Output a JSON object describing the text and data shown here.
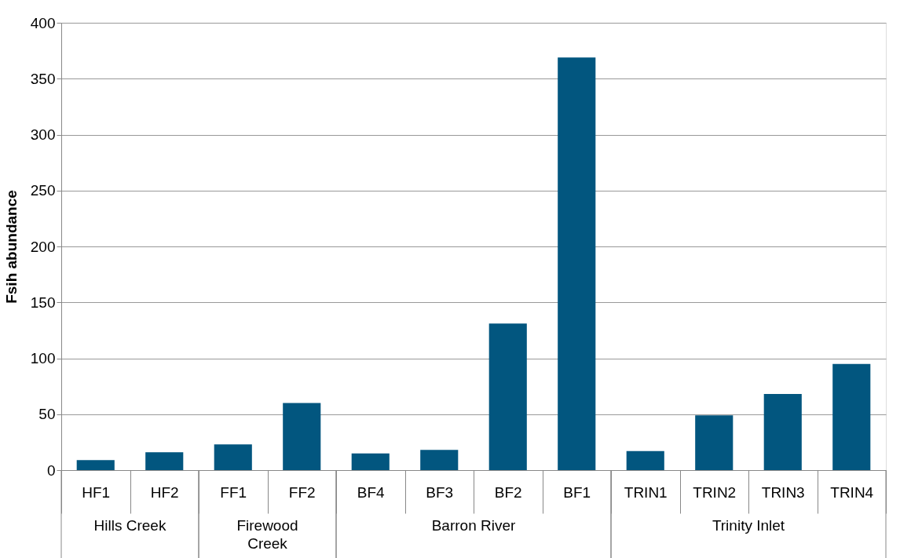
{
  "chart_data": {
    "type": "bar",
    "ylabel": "Fsih abundance",
    "categories": [
      "HF1",
      "HF2",
      "FF1",
      "FF2",
      "BF4",
      "BF3",
      "BF2",
      "BF1",
      "TRIN1",
      "TRIN2",
      "TRIN3",
      "TRIN4"
    ],
    "values": [
      9,
      16,
      23,
      60,
      15,
      18,
      131,
      369,
      17,
      49,
      68,
      95
    ],
    "color": "#02567f",
    "ylim": [
      0,
      400
    ],
    "yticks": [
      0,
      50,
      100,
      150,
      200,
      250,
      300,
      350,
      400
    ],
    "grid": "y",
    "annotations": [
      "Hills Creek",
      "Firewood\nCreek",
      "Barron River",
      "Trinity Inlet"
    ]
  }
}
